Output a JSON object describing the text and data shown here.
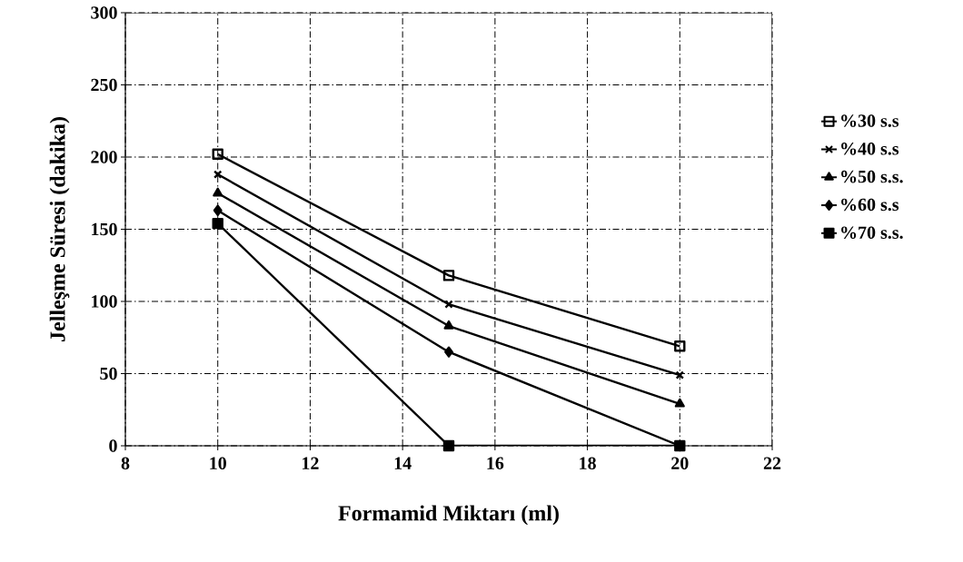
{
  "chart_data": {
    "type": "line",
    "xlabel": "Formamid Miktarı (ml)",
    "ylabel": "Jelleşme Süresi (dakika)",
    "x": [
      10,
      15,
      20
    ],
    "series": [
      {
        "name": "%30 s.s",
        "color": "#000000",
        "marker": "square_open",
        "values": [
          202,
          118,
          69
        ]
      },
      {
        "name": "%40 s.s",
        "color": "#000000",
        "marker": "cross",
        "values": [
          188,
          98,
          49
        ]
      },
      {
        "name": "%50 s.s.",
        "color": "#000000",
        "marker": "triangle",
        "values": [
          175,
          83,
          29
        ]
      },
      {
        "name": "%60 s.s",
        "color": "#000000",
        "marker": "diamond",
        "values": [
          163,
          65,
          0
        ]
      },
      {
        "name": "%70 s.s.",
        "color": "#000000",
        "marker": "square",
        "values": [
          154,
          0,
          0
        ]
      }
    ],
    "xlim": [
      8,
      22
    ],
    "xticks": [
      8,
      10,
      12,
      14,
      16,
      18,
      20,
      22
    ],
    "ylim": [
      0,
      300
    ],
    "yticks": [
      0,
      50,
      100,
      150,
      200,
      250,
      300
    ],
    "grid": true,
    "legend": "right",
    "line_style": "solid"
  }
}
